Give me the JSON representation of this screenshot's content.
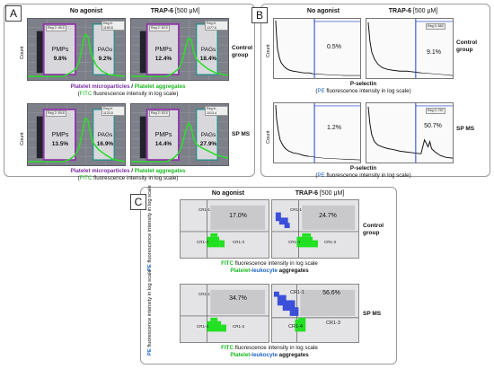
{
  "panels": {
    "A": {
      "letter": "A",
      "col1": "No agonist",
      "col2_name": "TRAP-6",
      "col2_dose": "[500 μM]",
      "count_label": "Count",
      "group_control": [
        "Control",
        "group"
      ],
      "group_sp": "SP MS",
      "caption_row1": {
        "pmp": "Platelet microparticles",
        "slash": " / ",
        "pag": "Platelet aggregates",
        "fitc_open": "(",
        "fitc": "FITC",
        "rest": " fluorescence intensity in log scale)"
      },
      "caption_row2": {
        "pmp": "Platelet microparticles",
        "slash": " / ",
        "pag": "Platelet aggregates",
        "fitc_open": "(",
        "fitc": "FITC",
        "rest": " fluorescence intensity in log scale)"
      },
      "plots": [
        {
          "pmp_label": "PMPs",
          "pmp_value": "9.8%",
          "pag_label": "PAGs",
          "pag_value": "9.2%",
          "reg1": "Reg 2: 46.5",
          "reg2": "Reg 6: 1150.6"
        },
        {
          "pmp_label": "PMPs",
          "pmp_value": "12.4%",
          "pag_label": "PAGs",
          "pag_value": "18.4%",
          "reg1": "Reg 2: 50.5",
          "reg2": "Reg 6: 1377.6"
        },
        {
          "pmp_label": "PMPs",
          "pmp_value": "13.5%",
          "pag_label": "PAGs",
          "pag_value": "16.9%",
          "reg1": "Reg 2: 59.8",
          "reg2": "Reg 6: 1123.5"
        },
        {
          "pmp_label": "PMPs",
          "pmp_value": "14.4%",
          "pag_label": "PAGs",
          "pag_value": "27.9%",
          "reg1": "Reg 2: 53.5",
          "reg2": "Reg 6: 1013.4"
        }
      ]
    },
    "B": {
      "letter": "B",
      "col1": "No agonist",
      "col2_name": "TRAP-6",
      "col2_dose": "[500 μM]",
      "count_label": "Count",
      "group_control": [
        "Control",
        "group"
      ],
      "group_sp": "SP MS",
      "xaxis1": "P-selectin",
      "caption1": {
        "open": "(",
        "pe": "PE",
        "rest": " fluorescence intensity in log scale)"
      },
      "xaxis2": "P-selectin",
      "caption2": {
        "open": "(",
        "pe": "PE",
        "rest": " fluorescence intensity in log scale)"
      },
      "plots": [
        {
          "value": "0.5%"
        },
        {
          "value": "9.1%",
          "reg": "Reg 3: 582"
        },
        {
          "value": "1.2%"
        },
        {
          "value": "50.7%",
          "reg": "Reg 3: 757"
        }
      ]
    },
    "C": {
      "letter": "C",
      "col1": "No agonist",
      "col2_name": "TRAP-6",
      "col2_dose": "[500 μM]",
      "ylabel_pe": "PE",
      "ylabel_rest": " fluorescence intensity in log scale",
      "group_control": [
        "Control",
        "group"
      ],
      "group_sp": "SP MS",
      "cap_row1": {
        "fitc": "FITC",
        "rest": " fluorescence intensity in log scale",
        "pl_plate": "Platelet",
        "pl_dash": "-",
        "pl_leuk": "leukocyte",
        "pl_agg": " aggregates"
      },
      "cap_row2": {
        "fitc": "FITC",
        "rest": " fluorescence intensity in log scale",
        "pl_plate": "Platelet",
        "pl_dash": "-",
        "pl_leuk": "leukocyte",
        "pl_agg": " aggregates"
      },
      "plots": [
        {
          "value": "17.0%",
          "q1": "CR1-1",
          "q3": "CR1-3",
          "q4": "CR1-4"
        },
        {
          "value": "24.7%",
          "q1": "CR1-1",
          "q3": "CR1-3",
          "q4": "CR1-4"
        },
        {
          "value": "34.7%",
          "q1": "CR1-1",
          "q3": "CR1-3",
          "q4": "CR1-4"
        },
        {
          "value": "56.6%",
          "q1": "CR1-1",
          "q3": "CR1-3",
          "q4": "CR1-4"
        }
      ]
    }
  }
}
